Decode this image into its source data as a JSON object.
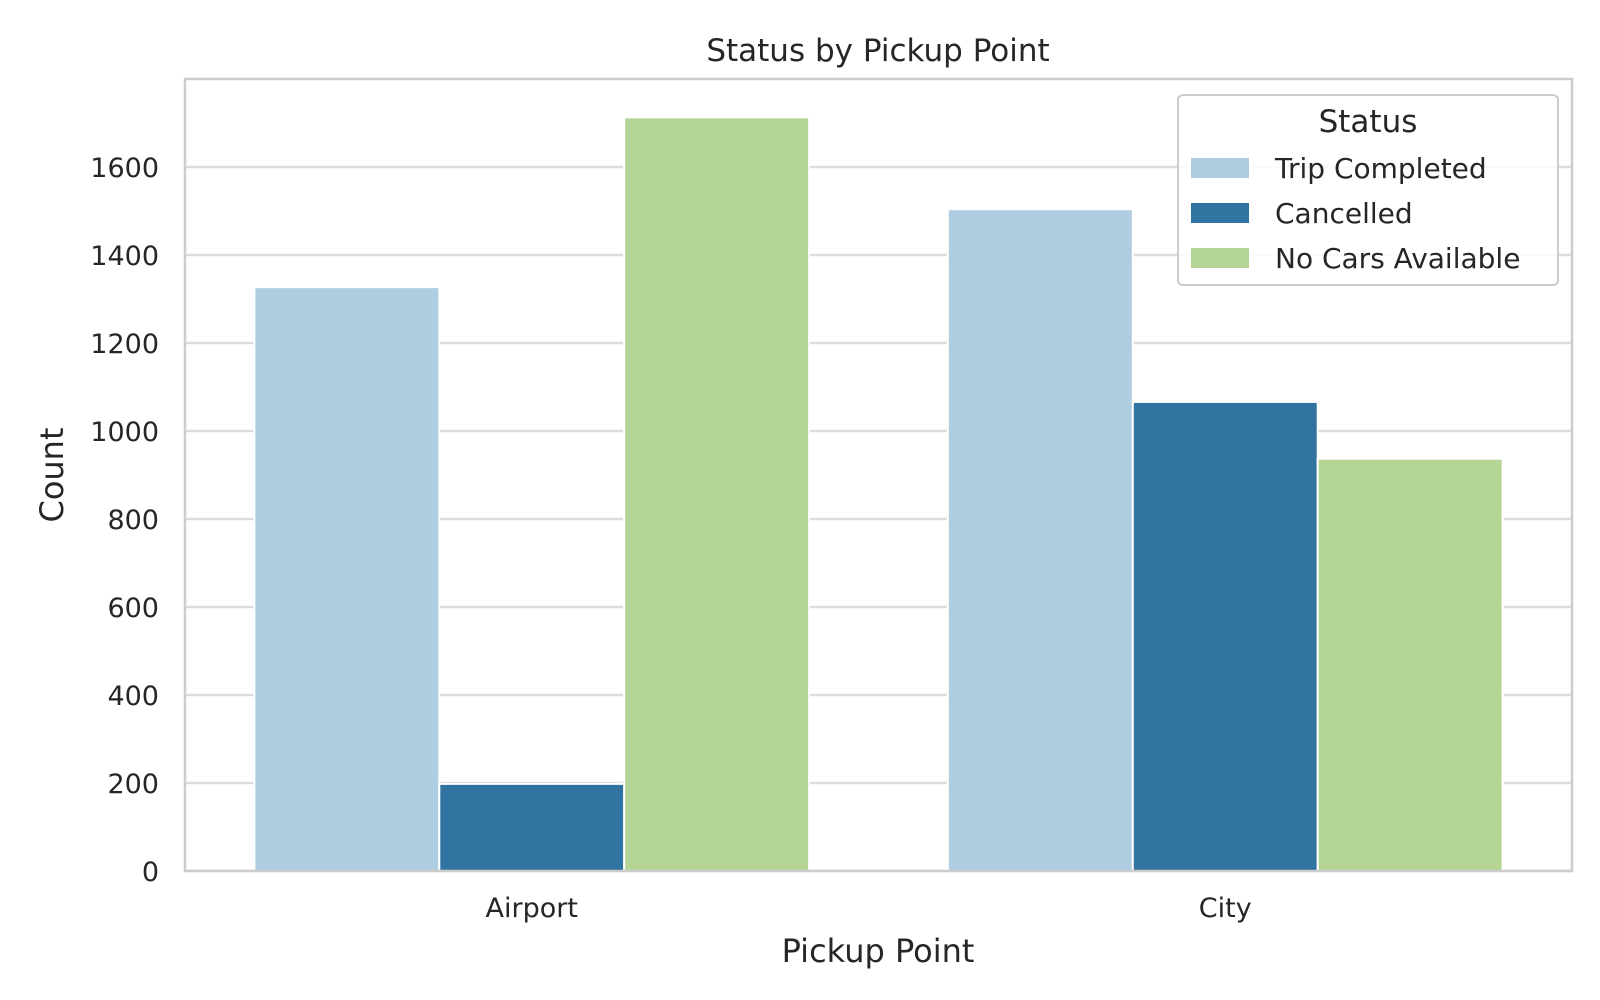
{
  "chart_data": {
    "type": "bar",
    "title": "Status by Pickup Point",
    "xlabel": "Pickup Point",
    "ylabel": "Count",
    "categories": [
      "Airport",
      "City"
    ],
    "series": [
      {
        "name": "Trip Completed",
        "values": [
          1327,
          1504
        ],
        "color": "#aecde0"
      },
      {
        "name": "Cancelled",
        "values": [
          198,
          1066
        ],
        "color": "#3274a1"
      },
      {
        "name": "No Cars Available",
        "values": [
          1713,
          937
        ],
        "color": "#b4d595"
      }
    ],
    "ylim": [
      0,
      1800
    ],
    "yticks": [
      0,
      200,
      400,
      600,
      800,
      1000,
      1200,
      1400,
      1600
    ],
    "grid": "horizontal",
    "legend": {
      "title": "Status",
      "placement": "top-right"
    }
  }
}
